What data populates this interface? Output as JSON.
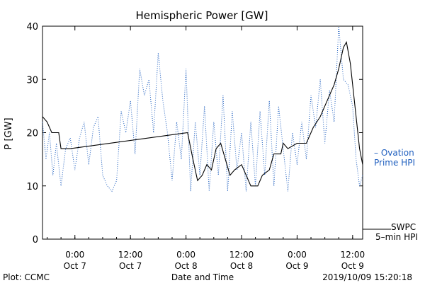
{
  "chart_data": {
    "type": "line",
    "title": "Hemispheric Power [GW]",
    "xlabel": "Date and Time",
    "ylabel": "P [GW]",
    "ylim": [
      0,
      40
    ],
    "yticks": [
      0,
      10,
      20,
      30,
      40
    ],
    "xlim": [
      "2019-10-06 17:00",
      "2019-10-09 14:10"
    ],
    "xticks": [
      {
        "t": "2019-10-07 00:00",
        "line1": "0:00",
        "line2": "Oct 7"
      },
      {
        "t": "2019-10-07 12:00",
        "line1": "12:00",
        "line2": "Oct 7"
      },
      {
        "t": "2019-10-08 00:00",
        "line1": "0:00",
        "line2": "Oct 8"
      },
      {
        "t": "2019-10-08 12:00",
        "line1": "12:00",
        "line2": "Oct 8"
      },
      {
        "t": "2019-10-09 00:00",
        "line1": "0:00",
        "line2": "Oct 9"
      },
      {
        "t": "2019-10-09 12:00",
        "line1": "12:00",
        "line2": "Oct 9"
      }
    ],
    "grid": false,
    "series": [
      {
        "name": "SWPC 5-min HPI",
        "style": "solid",
        "color": "#000000",
        "points": [
          [
            "2019-10-06 17:00",
            23
          ],
          [
            "2019-10-06 18:00",
            22
          ],
          [
            "2019-10-06 19:00",
            20
          ],
          [
            "2019-10-06 20:30",
            20
          ],
          [
            "2019-10-06 21:00",
            17
          ],
          [
            "2019-10-06 23:00",
            17
          ],
          [
            "2019-10-08 00:20",
            20
          ],
          [
            "2019-10-08 01:30",
            15
          ],
          [
            "2019-10-08 02:30",
            11
          ],
          [
            "2019-10-08 03:30",
            12
          ],
          [
            "2019-10-08 04:30",
            14
          ],
          [
            "2019-10-08 05:30",
            13
          ],
          [
            "2019-10-08 06:30",
            17
          ],
          [
            "2019-10-08 07:30",
            18
          ],
          [
            "2019-10-08 09:30",
            12
          ],
          [
            "2019-10-08 10:30",
            13
          ],
          [
            "2019-10-08 12:00",
            14
          ],
          [
            "2019-10-08 14:00",
            10
          ],
          [
            "2019-10-08 15:30",
            10
          ],
          [
            "2019-10-08 16:30",
            12
          ],
          [
            "2019-10-08 18:00",
            13
          ],
          [
            "2019-10-08 19:00",
            16
          ],
          [
            "2019-10-08 20:30",
            16
          ],
          [
            "2019-10-08 21:00",
            18
          ],
          [
            "2019-10-08 22:00",
            17
          ],
          [
            "2019-10-09 00:00",
            18
          ],
          [
            "2019-10-09 02:00",
            18
          ],
          [
            "2019-10-09 03:30",
            21
          ],
          [
            "2019-10-09 05:00",
            23
          ],
          [
            "2019-10-09 06:30",
            26
          ],
          [
            "2019-10-09 08:00",
            29
          ],
          [
            "2019-10-09 09:00",
            32
          ],
          [
            "2019-10-09 10:00",
            36
          ],
          [
            "2019-10-09 10:40",
            37
          ],
          [
            "2019-10-09 11:30",
            33
          ],
          [
            "2019-10-09 12:30",
            25
          ],
          [
            "2019-10-09 13:30",
            17
          ],
          [
            "2019-10-09 14:10",
            14
          ]
        ]
      },
      {
        "name": "Ovation Prime HPI",
        "style": "dotted",
        "color": "#1f5fbf",
        "points": [
          [
            "2019-10-06 17:00",
            22
          ],
          [
            "2019-10-06 17:45",
            15
          ],
          [
            "2019-10-06 18:30",
            20
          ],
          [
            "2019-10-06 19:15",
            12
          ],
          [
            "2019-10-06 20:00",
            18
          ],
          [
            "2019-10-06 21:00",
            10
          ],
          [
            "2019-10-06 22:00",
            17
          ],
          [
            "2019-10-06 23:00",
            19
          ],
          [
            "2019-10-07 00:00",
            13
          ],
          [
            "2019-10-07 01:00",
            19
          ],
          [
            "2019-10-07 02:00",
            22
          ],
          [
            "2019-10-07 03:00",
            14
          ],
          [
            "2019-10-07 04:00",
            21
          ],
          [
            "2019-10-07 05:00",
            23
          ],
          [
            "2019-10-07 06:00",
            12
          ],
          [
            "2019-10-07 07:00",
            10
          ],
          [
            "2019-10-07 08:00",
            9
          ],
          [
            "2019-10-07 09:00",
            11
          ],
          [
            "2019-10-07 10:00",
            24
          ],
          [
            "2019-10-07 11:00",
            20
          ],
          [
            "2019-10-07 12:00",
            26
          ],
          [
            "2019-10-07 13:00",
            16
          ],
          [
            "2019-10-07 14:00",
            32
          ],
          [
            "2019-10-07 15:00",
            27
          ],
          [
            "2019-10-07 16:00",
            30
          ],
          [
            "2019-10-07 17:00",
            20
          ],
          [
            "2019-10-07 18:00",
            35
          ],
          [
            "2019-10-07 19:00",
            26
          ],
          [
            "2019-10-07 20:00",
            20
          ],
          [
            "2019-10-07 21:00",
            11
          ],
          [
            "2019-10-07 22:00",
            22
          ],
          [
            "2019-10-07 23:00",
            15
          ],
          [
            "2019-10-08 00:00",
            32
          ],
          [
            "2019-10-08 01:00",
            9
          ],
          [
            "2019-10-08 02:00",
            22
          ],
          [
            "2019-10-08 03:00",
            12
          ],
          [
            "2019-10-08 04:00",
            25
          ],
          [
            "2019-10-08 05:00",
            9
          ],
          [
            "2019-10-08 06:00",
            22
          ],
          [
            "2019-10-08 07:00",
            12
          ],
          [
            "2019-10-08 08:00",
            27
          ],
          [
            "2019-10-08 09:00",
            9
          ],
          [
            "2019-10-08 10:00",
            24
          ],
          [
            "2019-10-08 11:00",
            13
          ],
          [
            "2019-10-08 12:00",
            20
          ],
          [
            "2019-10-08 13:00",
            9
          ],
          [
            "2019-10-08 14:00",
            22
          ],
          [
            "2019-10-08 15:00",
            10
          ],
          [
            "2019-10-08 16:00",
            24
          ],
          [
            "2019-10-08 17:00",
            12
          ],
          [
            "2019-10-08 18:00",
            26
          ],
          [
            "2019-10-08 19:00",
            10
          ],
          [
            "2019-10-08 20:00",
            25
          ],
          [
            "2019-10-08 21:00",
            17
          ],
          [
            "2019-10-08 22:00",
            9
          ],
          [
            "2019-10-08 23:00",
            20
          ],
          [
            "2019-10-09 00:00",
            14
          ],
          [
            "2019-10-09 01:00",
            22
          ],
          [
            "2019-10-09 02:00",
            15
          ],
          [
            "2019-10-09 03:00",
            27
          ],
          [
            "2019-10-09 04:00",
            21
          ],
          [
            "2019-10-09 05:00",
            30
          ],
          [
            "2019-10-09 06:00",
            18
          ],
          [
            "2019-10-09 07:00",
            28
          ],
          [
            "2019-10-09 08:00",
            22
          ],
          [
            "2019-10-09 09:00",
            40
          ],
          [
            "2019-10-09 10:00",
            30
          ],
          [
            "2019-10-09 11:00",
            29
          ],
          [
            "2019-10-09 12:00",
            25
          ],
          [
            "2019-10-09 12:45",
            15
          ],
          [
            "2019-10-09 13:30",
            10
          ],
          [
            "2019-10-09 14:10",
            12
          ]
        ]
      }
    ]
  },
  "legend": {
    "ovation_line1": "– Ovation",
    "ovation_line2": "Prime HPI",
    "swpc_line1": "SWPC",
    "swpc_line2": "5–min HPI"
  },
  "footer": {
    "plot_credit": "Plot: CCMC",
    "timestamp": "2019/10/09 15:20:18"
  }
}
